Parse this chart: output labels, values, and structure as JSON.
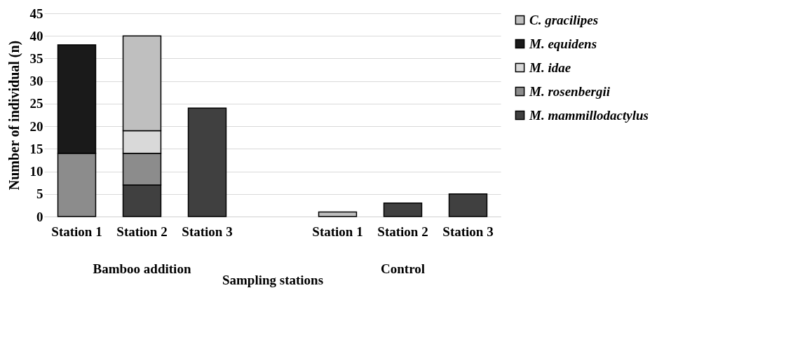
{
  "chart_data": {
    "type": "bar",
    "stacked": true,
    "xlabel": "Sampling stations",
    "ylabel": "Number of individual (n)",
    "categories": [
      "Station 1",
      "Station 2",
      "Station 3",
      null,
      "Station 1",
      "Station 2",
      "Station 3"
    ],
    "series": [
      {
        "name": "M. mammillodactylus",
        "color": "#404040",
        "values": [
          null,
          7,
          24,
          null,
          null,
          3,
          5
        ]
      },
      {
        "name": "M. rosenbergii",
        "color": "#8c8c8c",
        "values": [
          14,
          7,
          null,
          null,
          null,
          null,
          null
        ]
      },
      {
        "name": "M. idae",
        "color": "#d9d9d9",
        "values": [
          null,
          5,
          null,
          null,
          null,
          null,
          null
        ]
      },
      {
        "name": "M. equidens",
        "color": "#1a1a1a",
        "values": [
          24,
          null,
          null,
          null,
          null,
          null,
          null
        ]
      },
      {
        "name": "C. gracilipes",
        "color": "#bfbfbf",
        "values": [
          null,
          21,
          null,
          null,
          1,
          null,
          null
        ]
      }
    ],
    "annotations": [
      "Bamboo addition",
      "Control"
    ],
    "ylim": [
      0,
      45
    ],
    "yticks": [
      0,
      5,
      10,
      15,
      20,
      25,
      30,
      35,
      40,
      45
    ],
    "grid": "y",
    "legend": "right"
  }
}
